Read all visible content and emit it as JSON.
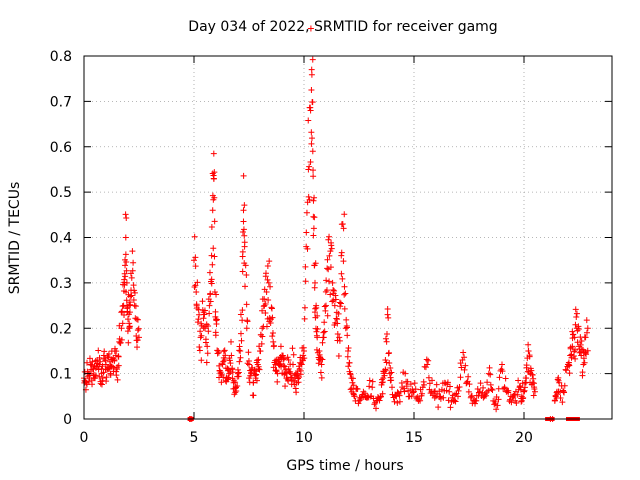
{
  "chart_data": {
    "type": "scatter",
    "title": "Day 034 of 2022, SRMTID for receiver gamg",
    "xlabel": "GPS time / hours",
    "ylabel": "SRMTID / TECUs",
    "xlim": [
      0,
      24
    ],
    "ylim": [
      0,
      0.8
    ],
    "xticks": [
      0,
      5,
      10,
      15,
      20
    ],
    "xtick_labels": [
      "0",
      "5",
      "10",
      "15",
      "20"
    ],
    "yticks": [
      0,
      0.1,
      0.2,
      0.3,
      0.4,
      0.5,
      0.6,
      0.7,
      0.8
    ],
    "ytick_labels": [
      "0",
      "0.1",
      "0.2",
      "0.3",
      "0.4",
      "0.5",
      "0.6",
      "0.7",
      "0.8"
    ],
    "grid": true,
    "marker": "+",
    "series": [
      {
        "name": "SRMTID",
        "color": "#ff0000",
        "x": [
          0.0,
          0.1,
          0.2,
          0.3,
          0.4,
          0.5,
          0.6,
          0.7,
          0.8,
          0.9,
          1.0,
          1.1,
          1.2,
          1.3,
          1.4,
          1.5,
          1.6,
          1.7,
          1.8,
          1.85,
          1.9,
          1.95,
          2.0,
          2.05,
          2.1,
          2.2,
          2.3,
          2.4,
          2.5,
          4.8,
          4.85,
          4.9,
          5.0,
          5.1,
          5.2,
          5.3,
          5.4,
          5.5,
          5.6,
          5.7,
          5.8,
          5.85,
          5.9,
          5.95,
          6.0,
          6.1,
          6.2,
          6.3,
          6.4,
          6.5,
          6.6,
          6.7,
          6.8,
          6.9,
          7.0,
          7.1,
          7.2,
          7.25,
          7.3,
          7.4,
          7.5,
          7.6,
          7.7,
          7.8,
          7.9,
          8.0,
          8.1,
          8.2,
          8.3,
          8.4,
          8.5,
          8.6,
          8.7,
          8.8,
          8.9,
          9.0,
          9.1,
          9.2,
          9.3,
          9.4,
          9.5,
          9.6,
          9.7,
          9.8,
          9.9,
          10.0,
          10.1,
          10.2,
          10.3,
          10.35,
          10.4,
          10.45,
          10.5,
          10.55,
          10.6,
          10.7,
          10.8,
          10.9,
          11.0,
          11.1,
          11.2,
          11.3,
          11.4,
          11.5,
          11.6,
          11.7,
          11.8,
          11.9,
          12.0,
          12.1,
          12.2,
          12.3,
          12.5,
          12.7,
          12.9,
          13.1,
          13.3,
          13.5,
          13.6,
          13.7,
          13.8,
          13.9,
          14.0,
          14.2,
          14.4,
          14.6,
          14.8,
          15.0,
          15.2,
          15.4,
          15.6,
          15.8,
          16.0,
          16.2,
          16.4,
          16.6,
          16.8,
          17.0,
          17.2,
          17.4,
          17.6,
          17.8,
          18.0,
          18.2,
          18.4,
          18.6,
          18.8,
          19.0,
          19.2,
          19.4,
          19.6,
          19.8,
          19.9,
          20.0,
          20.1,
          20.2,
          20.3,
          20.4,
          20.5,
          21.2,
          21.3,
          21.4,
          21.5,
          21.6,
          21.8,
          22.0,
          22.1,
          22.2,
          22.3,
          22.4,
          22.5,
          22.6,
          22.7,
          22.8,
          22.9
        ],
        "y": [
          0.09,
          0.08,
          0.1,
          0.12,
          0.11,
          0.09,
          0.13,
          0.12,
          0.1,
          0.14,
          0.12,
          0.11,
          0.1,
          0.13,
          0.15,
          0.11,
          0.17,
          0.2,
          0.25,
          0.32,
          0.4,
          0.3,
          0.22,
          0.2,
          0.27,
          0.37,
          0.25,
          0.22,
          0.18,
          0.0,
          0.0,
          0.0,
          0.35,
          0.28,
          0.22,
          0.18,
          0.24,
          0.2,
          0.16,
          0.25,
          0.36,
          0.46,
          0.53,
          0.28,
          0.22,
          0.15,
          0.1,
          0.12,
          0.13,
          0.09,
          0.1,
          0.14,
          0.08,
          0.07,
          0.1,
          0.15,
          0.24,
          0.46,
          0.38,
          0.2,
          0.12,
          0.1,
          0.08,
          0.09,
          0.12,
          0.15,
          0.2,
          0.25,
          0.28,
          0.3,
          0.22,
          0.17,
          0.12,
          0.1,
          0.12,
          0.14,
          0.1,
          0.09,
          0.13,
          0.1,
          0.12,
          0.09,
          0.1,
          0.11,
          0.12,
          0.15,
          0.38,
          0.55,
          0.68,
          0.77,
          0.59,
          0.42,
          0.3,
          0.25,
          0.18,
          0.15,
          0.12,
          0.18,
          0.25,
          0.33,
          0.37,
          0.3,
          0.25,
          0.22,
          0.18,
          0.32,
          0.42,
          0.2,
          0.15,
          0.1,
          0.08,
          0.05,
          0.04,
          0.06,
          0.05,
          0.07,
          0.04,
          0.05,
          0.09,
          0.13,
          0.23,
          0.1,
          0.07,
          0.05,
          0.06,
          0.1,
          0.05,
          0.06,
          0.04,
          0.07,
          0.12,
          0.06,
          0.05,
          0.05,
          0.08,
          0.06,
          0.04,
          0.05,
          0.13,
          0.08,
          0.05,
          0.04,
          0.06,
          0.05,
          0.1,
          0.04,
          0.03,
          0.12,
          0.06,
          0.05,
          0.04,
          0.07,
          0.05,
          0.06,
          0.09,
          0.15,
          0.1,
          0.08,
          0.06,
          0.0,
          0.0,
          0.04,
          0.06,
          0.08,
          0.06,
          0.12,
          0.14,
          0.16,
          0.18,
          0.2,
          0.16,
          0.14,
          0.12,
          0.18,
          0.2
        ]
      }
    ],
    "zero_markers_x": [
      4.8,
      4.85,
      4.9,
      21.05,
      21.1,
      21.2,
      21.25,
      21.3,
      22.0,
      22.05,
      22.1,
      22.15,
      22.3,
      22.35,
      22.4,
      22.45
    ]
  }
}
